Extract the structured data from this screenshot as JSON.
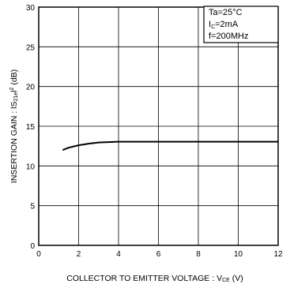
{
  "chart_data": {
    "type": "line",
    "title": "",
    "xlabel": {
      "main": "COLLECTOR TO EMITTER VOLTAGE : V",
      "sub": "CE",
      "unit": " (V)"
    },
    "ylabel": {
      "main": "INSERTION GAIN : lS",
      "sub": "21e",
      "mid": "l",
      "sup": "2",
      "unit": " (dB)"
    },
    "xlim": [
      0,
      12
    ],
    "ylim": [
      0,
      30
    ],
    "x_ticks": [
      "0",
      "2",
      "4",
      "6",
      "8",
      "10",
      "12"
    ],
    "y_ticks": [
      "0",
      "5",
      "10",
      "15",
      "20",
      "25",
      "30"
    ],
    "grid": true,
    "conditions": [
      {
        "pre": "Ta=25°C",
        "sub": "",
        "post": ""
      },
      {
        "pre": "I",
        "sub": "C",
        "post": "=2mA"
      },
      {
        "pre": "f=200MHz",
        "sub": "",
        "post": ""
      }
    ],
    "series": [
      {
        "x": [
          1.2,
          1.5,
          2.0,
          2.5,
          3.0,
          3.5,
          4.0,
          5.0,
          6.0,
          8.0,
          10.0,
          12.0
        ],
        "y": [
          12.0,
          12.3,
          12.6,
          12.8,
          12.95,
          13.0,
          13.05,
          13.05,
          13.05,
          13.05,
          13.05,
          13.05
        ]
      }
    ],
    "colors": {
      "line": "#000000",
      "grid": "#000000",
      "background": "#ffffff"
    }
  }
}
